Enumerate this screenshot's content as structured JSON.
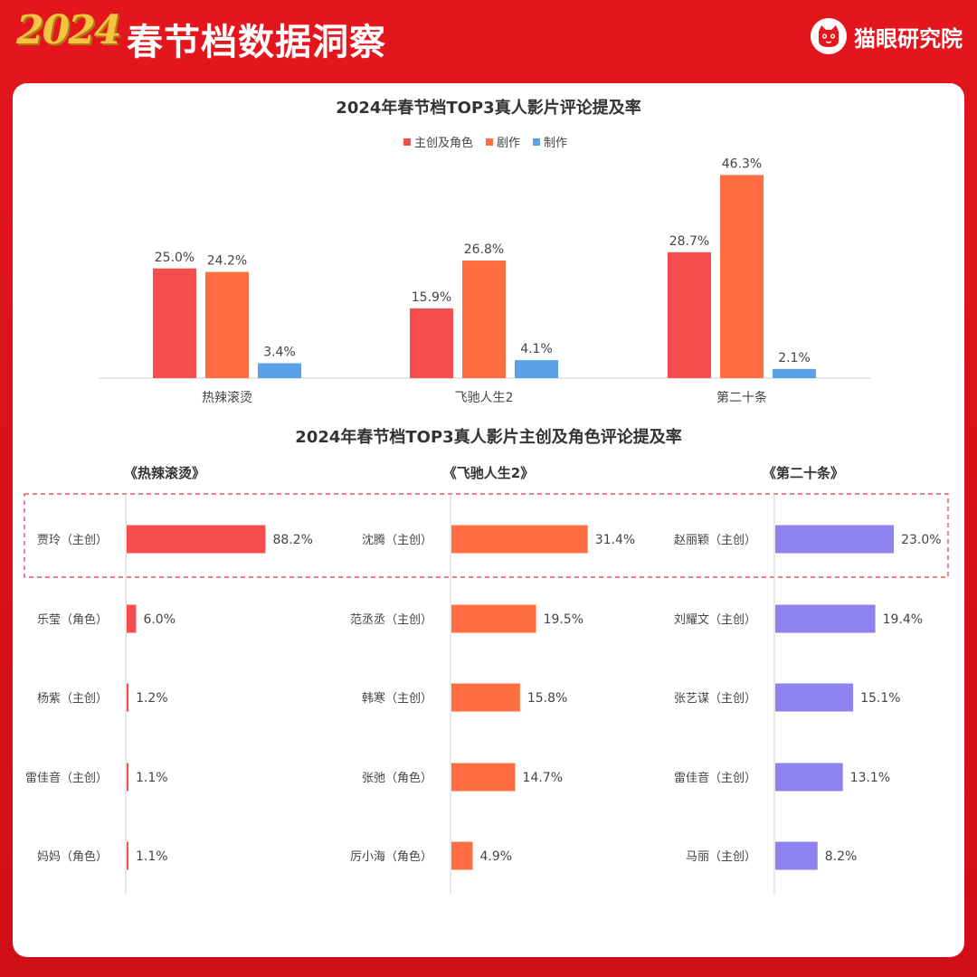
{
  "header": {
    "year": "2024",
    "title": "春节档数据洞察",
    "brand": "猫眼研究院"
  },
  "colors": {
    "creators": "#f54e4e",
    "plot": "#ff6e40",
    "production": "#5aa2e8",
    "film2": "#ff6e40",
    "film3": "#8e82ee"
  },
  "chart_data": [
    {
      "type": "bar",
      "title": "2024年春节档TOP3真人影片评论提及率",
      "categories": [
        "热辣滚烫",
        "飞驰人生2",
        "第二十条"
      ],
      "series": [
        {
          "name": "主创及角色",
          "values": [
            25.0,
            15.9,
            28.7
          ],
          "labels": [
            "25.0%",
            "15.9%",
            "28.7%"
          ]
        },
        {
          "name": "剧作",
          "values": [
            24.2,
            26.8,
            46.3
          ],
          "labels": [
            "24.2%",
            "26.8%",
            "46.3%"
          ]
        },
        {
          "name": "制作",
          "values": [
            3.4,
            4.1,
            2.1
          ],
          "labels": [
            "3.4%",
            "4.1%",
            "2.1%"
          ]
        }
      ],
      "legend": "top-center",
      "grid": false
    },
    {
      "type": "bar",
      "orientation": "horizontal",
      "title": "2024年春节档TOP3真人影片主创及角色评论提及率",
      "panels": [
        {
          "film": "《热辣滚烫》",
          "categories": [
            "贾玲（主创）",
            "乐莹（角色）",
            "杨紫（主创）",
            "雷佳音（主创）",
            "妈妈（角色）"
          ],
          "values": [
            88.2,
            6.0,
            1.2,
            1.1,
            1.1
          ],
          "labels": [
            "88.2%",
            "6.0%",
            "1.2%",
            "1.1%",
            "1.1%"
          ]
        },
        {
          "film": "《飞驰人生2》",
          "categories": [
            "沈腾（主创）",
            "范丞丞（主创）",
            "韩寒（主创）",
            "张弛（角色）",
            "厉小海（角色）"
          ],
          "values": [
            31.4,
            19.5,
            15.8,
            14.7,
            4.9
          ],
          "labels": [
            "31.4%",
            "19.5%",
            "15.8%",
            "14.7%",
            "4.9%"
          ]
        },
        {
          "film": "《第二十条》",
          "categories": [
            "赵丽颖（主创）",
            "刘耀文（主创）",
            "张艺谋（主创）",
            "雷佳音（主创）",
            "马丽（主创）"
          ],
          "values": [
            23.0,
            19.4,
            15.1,
            13.1,
            8.2
          ],
          "labels": [
            "23.0%",
            "19.4%",
            "15.1%",
            "13.1%",
            "8.2%"
          ]
        }
      ],
      "highlight": "first row (dashed box)"
    }
  ]
}
